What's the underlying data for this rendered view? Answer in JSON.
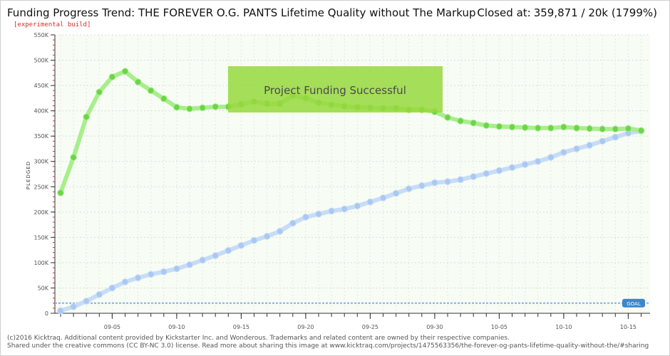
{
  "header": {
    "title": "Funding Progress Trend: THE FOREVER O.G. PANTS Lifetime Quality without The Markup",
    "subtitle": "[experimental build]",
    "closed_label": "Closed at:",
    "closed_value": "359,871 /  20k (1799%)"
  },
  "banner": {
    "text": "Project Funding Successful"
  },
  "goal_badge": "GOAL",
  "footer": {
    "line1": "(c)2016 Kicktraq. Additional content provided by Kickstarter Inc. and Wonderous. Trademarks and related content are owned by their respective companies.",
    "line2": "Shared under the creative commons (CC BY-NC 3.0) license. Read more about sharing this image at www.kicktraq.com/projects/1475563356/the-forever-og-pants-lifetime-quality-without-the/#sharing"
  },
  "colors": {
    "pledged_line": "#a8ee8c",
    "pledged_point": "#6dd44a",
    "trend_line": "#c7dcf7",
    "trend_point": "#a9c8f2",
    "goal_line": "#8ab0e0",
    "goal_badge": "#3a86d0",
    "banner": "#96d83c",
    "plot_bg": "#f7fcf4"
  },
  "chart_data": {
    "type": "line",
    "ylabel": "PLEDGED",
    "ylim": [
      0,
      550000
    ],
    "y_ticks": [
      0,
      50000,
      100000,
      150000,
      200000,
      250000,
      300000,
      350000,
      400000,
      450000,
      500000,
      550000
    ],
    "y_tick_labels": [
      "0",
      "50K",
      "100K",
      "150K",
      "200K",
      "250K",
      "300K",
      "350K",
      "400K",
      "450K",
      "500K",
      "550K"
    ],
    "x_tick_labels": [
      "09-05",
      "09-10",
      "09-15",
      "09-20",
      "09-25",
      "09-30",
      "10-05",
      "10-10",
      "10-15"
    ],
    "x_tick_days": [
      4,
      9,
      14,
      19,
      24,
      29,
      34,
      39,
      44
    ],
    "day_count": 46,
    "goal": 20000,
    "series": [
      {
        "key": "pledged",
        "values": [
          238000,
          308000,
          388000,
          437000,
          467000,
          478000,
          457000,
          440000,
          424000,
          407000,
          404000,
          406000,
          408000,
          408000,
          413000,
          418000,
          414000,
          414000,
          430000,
          425000,
          416000,
          412000,
          409000,
          407000,
          406000,
          405000,
          405000,
          402000,
          402000,
          398000,
          387000,
          380000,
          376000,
          371000,
          369000,
          368000,
          367000,
          366000,
          366000,
          368000,
          366000,
          365000,
          364000,
          364000,
          365000,
          361000
        ]
      },
      {
        "key": "trend",
        "values": [
          5000,
          13000,
          24000,
          37000,
          50000,
          62000,
          70000,
          77000,
          82000,
          88000,
          96000,
          105000,
          114000,
          124000,
          134000,
          144000,
          152000,
          162000,
          178000,
          190000,
          196000,
          202000,
          206000,
          212000,
          220000,
          228000,
          237000,
          246000,
          252000,
          258000,
          260000,
          264000,
          270000,
          276000,
          282000,
          288000,
          294000,
          300000,
          308000,
          318000,
          325000,
          332000,
          340000,
          348000,
          356000,
          359871
        ]
      }
    ]
  }
}
